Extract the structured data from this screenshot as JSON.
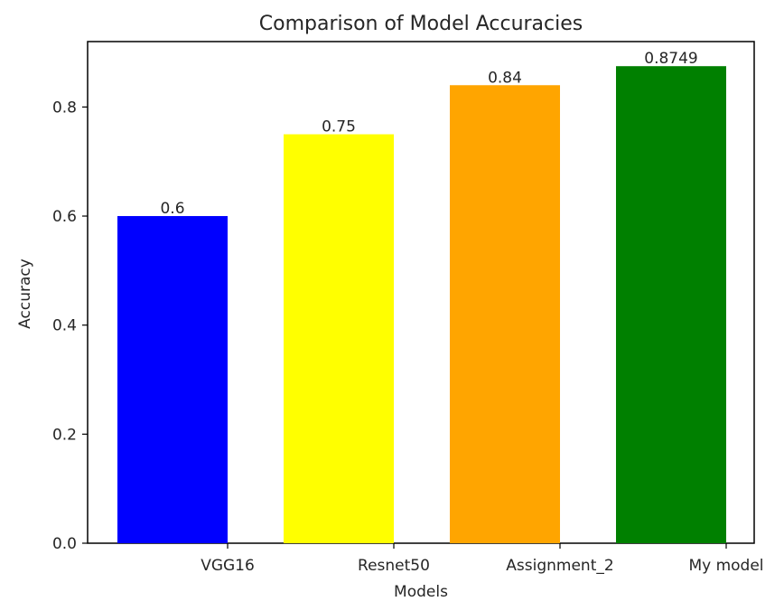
{
  "chart_data": {
    "type": "bar",
    "title": "Comparison of Model Accuracies",
    "xlabel": "Models",
    "ylabel": "Accuracy",
    "categories": [
      "VGG16",
      "Resnet50",
      "Assignment_2",
      "My model"
    ],
    "values": [
      0.6,
      0.75,
      0.84,
      0.8749
    ],
    "value_labels": [
      "0.6",
      "0.75",
      "0.84",
      "0.8749"
    ],
    "colors": [
      "#0000ff",
      "#ffff00",
      "#ffa500",
      "#008000"
    ],
    "ylim": [
      0,
      0.92
    ],
    "yticks": [
      0.0,
      0.2,
      0.4,
      0.6,
      0.8
    ],
    "ytick_labels": [
      "0.0",
      "0.2",
      "0.4",
      "0.6",
      "0.8"
    ],
    "grid": false,
    "legend": "none"
  }
}
